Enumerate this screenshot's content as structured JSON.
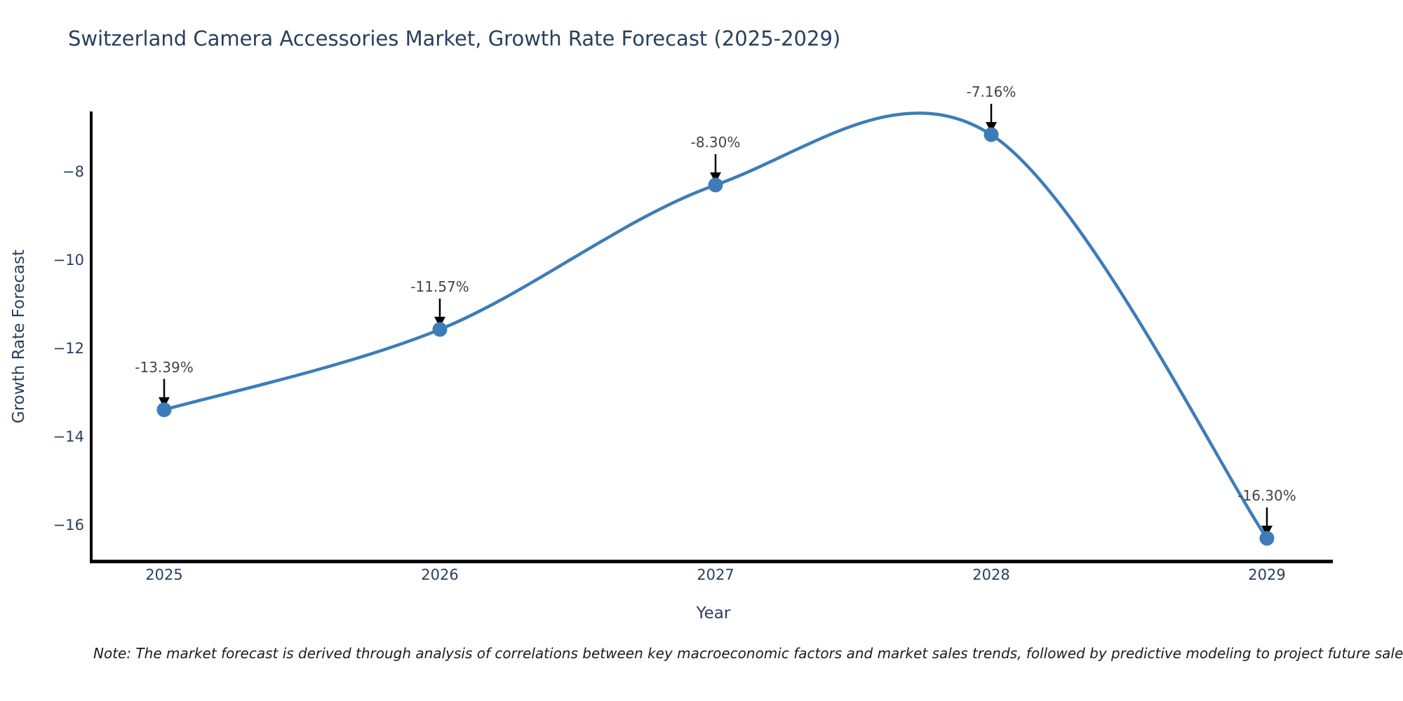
{
  "chart_data": {
    "type": "line",
    "title": "Switzerland Camera Accessories Market, Growth Rate Forecast (2025-2029)",
    "xlabel": "Year",
    "ylabel": "Growth Rate Forecast",
    "x": [
      2025,
      2026,
      2027,
      2028,
      2029
    ],
    "series": [
      {
        "name": "Growth Rate Forecast",
        "values": [
          -13.39,
          -11.57,
          -8.3,
          -7.16,
          -16.3
        ]
      }
    ],
    "point_labels": [
      "-13.39%",
      "-11.57%",
      "-8.30%",
      "-7.16%",
      "-16.30%"
    ],
    "yticks": [
      -8,
      -10,
      -12,
      -14,
      -16
    ],
    "xticks": [
      2025,
      2026,
      2027,
      2028,
      2029
    ],
    "ylim": [
      -16.81,
      -6.63
    ],
    "xlim": [
      2024.73,
      2029.24
    ],
    "line_shape": "spline",
    "grid": false,
    "legend": false,
    "marker": "circle",
    "annotation_arrows": "down-black"
  },
  "footnote": "Note: The market forecast is derived through analysis of correlations between key macroeconomic factors and market sales trends, followed by predictive modeling to project future sales",
  "colors": {
    "background": "#ffffff",
    "line": "#3d7cb9",
    "marker": "#3d7cb9",
    "axis_line": "#000000",
    "arrow": "#000000",
    "heading_text": "#2a3f5f",
    "axis_text": "#2a3f5f",
    "annotation_text": "#444444",
    "note_text": "#1c1c1c"
  }
}
